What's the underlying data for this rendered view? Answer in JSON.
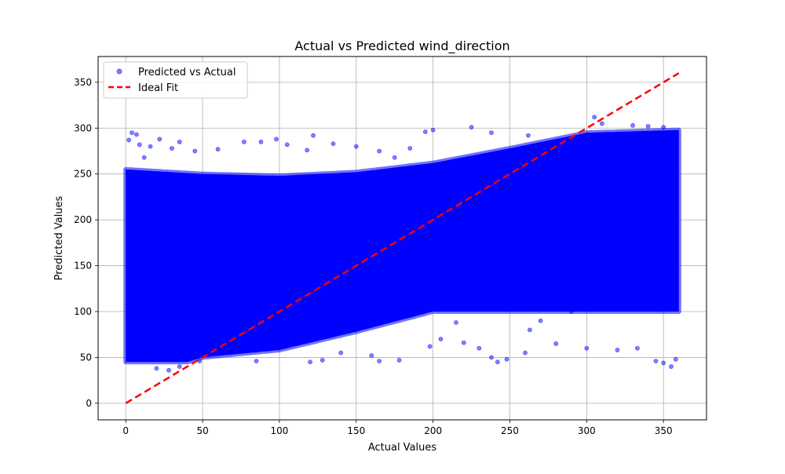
{
  "chart_data": {
    "type": "scatter",
    "title": "Actual vs Predicted wind_direction",
    "xlabel": "Actual Values",
    "ylabel": "Predicted Values",
    "xlim": [
      -18,
      378
    ],
    "ylim": [
      -18.1,
      378.1
    ],
    "xticks": [
      0,
      50,
      100,
      150,
      200,
      250,
      300,
      350
    ],
    "yticks": [
      0,
      50,
      100,
      150,
      200,
      250,
      300,
      350
    ],
    "grid": true,
    "legend_position": "top-left",
    "series": [
      {
        "name": "Predicted vs Actual",
        "kind": "scatter",
        "color": "#0000ff",
        "opacity": 0.5,
        "band": {
          "x_range": [
            0,
            360
          ],
          "lower": [
            [
              0,
              45
            ],
            [
              40,
              45
            ],
            [
              50,
              50
            ],
            [
              100,
              58
            ],
            [
              150,
              78
            ],
            [
              200,
              100
            ],
            [
              250,
              100
            ],
            [
              300,
              100
            ],
            [
              360,
              100
            ]
          ],
          "upper": [
            [
              0,
              255
            ],
            [
              50,
              250
            ],
            [
              100,
              248
            ],
            [
              150,
              252
            ],
            [
              200,
              262
            ],
            [
              250,
              278
            ],
            [
              300,
              295
            ],
            [
              360,
              298
            ]
          ],
          "note_points": []
        },
        "outliers": [
          [
            2,
            287
          ],
          [
            4,
            295
          ],
          [
            7,
            293
          ],
          [
            9,
            282
          ],
          [
            12,
            268
          ],
          [
            16,
            280
          ],
          [
            22,
            288
          ],
          [
            30,
            278
          ],
          [
            35,
            285
          ],
          [
            45,
            275
          ],
          [
            60,
            277
          ],
          [
            77,
            285
          ],
          [
            88,
            285
          ],
          [
            98,
            288
          ],
          [
            105,
            282
          ],
          [
            118,
            276
          ],
          [
            122,
            292
          ],
          [
            135,
            283
          ],
          [
            150,
            280
          ],
          [
            165,
            275
          ],
          [
            175,
            268
          ],
          [
            185,
            278
          ],
          [
            195,
            296
          ],
          [
            200,
            298
          ],
          [
            225,
            301
          ],
          [
            238,
            295
          ],
          [
            262,
            292
          ],
          [
            20,
            38
          ],
          [
            28,
            36
          ],
          [
            35,
            40
          ],
          [
            48,
            46
          ],
          [
            85,
            46
          ],
          [
            120,
            45
          ],
          [
            128,
            47
          ],
          [
            140,
            55
          ],
          [
            160,
            52
          ],
          [
            165,
            46
          ],
          [
            178,
            47
          ],
          [
            220,
            66
          ],
          [
            230,
            60
          ],
          [
            238,
            50
          ],
          [
            242,
            45
          ],
          [
            248,
            48
          ],
          [
            260,
            55
          ],
          [
            280,
            65
          ],
          [
            300,
            60
          ],
          [
            320,
            58
          ],
          [
            333,
            60
          ],
          [
            345,
            46
          ],
          [
            350,
            44
          ],
          [
            355,
            40
          ],
          [
            358,
            48
          ],
          [
            198,
            62
          ],
          [
            205,
            70
          ],
          [
            215,
            88
          ],
          [
            263,
            80
          ],
          [
            270,
            90
          ],
          [
            290,
            100
          ],
          [
            305,
            312
          ],
          [
            310,
            305
          ],
          [
            330,
            303
          ],
          [
            340,
            302
          ],
          [
            350,
            301
          ]
        ]
      },
      {
        "name": "Ideal Fit",
        "kind": "line",
        "color": "#ff0000",
        "dash": "dashed",
        "x": [
          0,
          360
        ],
        "y": [
          0,
          360
        ]
      }
    ]
  }
}
